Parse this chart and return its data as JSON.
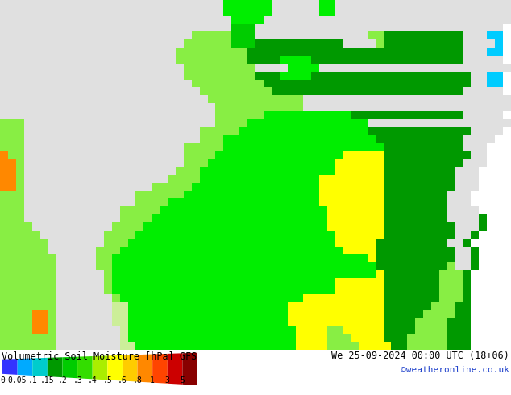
{
  "title_left": "Volumetric Soil Moisture [hPa] GFS",
  "title_right": "We 25-09-2024 00:00 UTC (18+06)",
  "credit": "©weatheronline.co.uk",
  "colorbar_labels": [
    "0",
    "0.05",
    ".1",
    ".15",
    ".2",
    ".3",
    ".4",
    ".5",
    ".6",
    ".8",
    "1",
    "3",
    "5"
  ],
  "colorbar_colors": [
    "#3333ff",
    "#00aaff",
    "#00cccc",
    "#009900",
    "#00cc00",
    "#33dd00",
    "#aaee00",
    "#ffff00",
    "#ffcc00",
    "#ff8800",
    "#ff4400",
    "#cc0000",
    "#880000"
  ],
  "bg_color": "#ffffff",
  "sea_color": "#e0e0e0",
  "bottom_bg": "#ffffff",
  "title_fontsize": 8.5,
  "credit_color": "#2244cc",
  "tick_fontsize": 7,
  "map_colors": {
    "sea": "#e0e0e0",
    "bright_green": "#00ee00",
    "mid_green": "#00cc00",
    "dark_green": "#009900",
    "light_green": "#88ee44",
    "pale_green": "#ccee99",
    "yellow": "#ffff00",
    "yel_green": "#aaee00",
    "orange": "#ff8800",
    "lt_orange": "#ffaa44",
    "cyan": "#00ccff",
    "teal": "#009999"
  },
  "grid_rows": 44,
  "grid_cols": 64
}
